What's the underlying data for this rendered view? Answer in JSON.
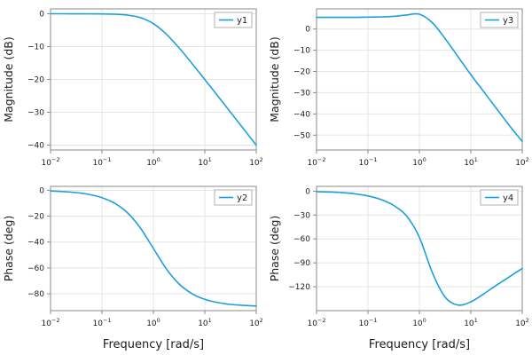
{
  "figure": {
    "background": "#ffffff",
    "line_color": "#1ca0dc",
    "grid_color": "#e5e5e5",
    "frame_color": "#8a8a8a",
    "text_color": "#1c1c1c",
    "legend_border_color": "#b0b0b0"
  },
  "chart_data": [
    {
      "type": "line",
      "position": "top-left",
      "legend": "y1",
      "ylabel": "Magnitude (dB)",
      "xlabel": "",
      "x_scale": "log10",
      "xlim": [
        -2,
        2
      ],
      "ylim": [
        -41.5,
        1.5
      ],
      "xtick_exponents": [
        -2,
        -1,
        0,
        1,
        2
      ],
      "yticks": [
        0,
        -10,
        -20,
        -30,
        -40
      ],
      "grid": true,
      "legend_position": "top-right",
      "points": [
        [
          -2,
          0
        ],
        [
          -1.75,
          0
        ],
        [
          -1.5,
          -0.005
        ],
        [
          -1.25,
          -0.014
        ],
        [
          -1,
          -0.043
        ],
        [
          -0.75,
          -0.135
        ],
        [
          -0.5,
          -0.414
        ],
        [
          -0.25,
          -1.19
        ],
        [
          0,
          -3.01
        ],
        [
          0.25,
          -6.19
        ],
        [
          0.5,
          -10.41
        ],
        [
          0.75,
          -15.13
        ],
        [
          1,
          -20.04
        ],
        [
          1.25,
          -25.01
        ],
        [
          1.5,
          -30.0
        ],
        [
          1.75,
          -35.0
        ],
        [
          2,
          -40.0
        ]
      ]
    },
    {
      "type": "line",
      "position": "top-right",
      "legend": "y3",
      "ylabel": "Magnitude (dB)",
      "xlabel": "",
      "x_scale": "log10",
      "xlim": [
        -2,
        2
      ],
      "ylim": [
        -57,
        9.5
      ],
      "xtick_exponents": [
        -2,
        -1,
        0,
        1,
        2
      ],
      "yticks": [
        0,
        -10,
        -20,
        -30,
        -40,
        -50
      ],
      "grid": true,
      "legend_position": "top-right",
      "points": [
        [
          -2,
          5.5
        ],
        [
          -1.75,
          5.5
        ],
        [
          -1.5,
          5.5
        ],
        [
          -1.25,
          5.5
        ],
        [
          -1,
          5.6
        ],
        [
          -0.75,
          5.7
        ],
        [
          -0.5,
          6.0
        ],
        [
          -0.25,
          6.6
        ],
        [
          0,
          7.0
        ],
        [
          0.25,
          3.0
        ],
        [
          0.5,
          -4.5
        ],
        [
          0.75,
          -13
        ],
        [
          1,
          -21.5
        ],
        [
          1.25,
          -29.5
        ],
        [
          1.5,
          -37.5
        ],
        [
          1.75,
          -45.5
        ],
        [
          2,
          -53
        ]
      ]
    },
    {
      "type": "line",
      "position": "bottom-left",
      "legend": "y2",
      "ylabel": "Phase (deg)",
      "xlabel": "Frequency [rad/s]",
      "x_scale": "log10",
      "xlim": [
        -2,
        2
      ],
      "ylim": [
        -93,
        3
      ],
      "xtick_exponents": [
        -2,
        -1,
        0,
        1,
        2
      ],
      "yticks": [
        0,
        -20,
        -40,
        -60,
        -80
      ],
      "grid": true,
      "legend_position": "top-right",
      "points": [
        [
          -2,
          -0.57
        ],
        [
          -1.75,
          -1.02
        ],
        [
          -1.5,
          -1.81
        ],
        [
          -1.25,
          -3.22
        ],
        [
          -1,
          -5.71
        ],
        [
          -0.75,
          -10.08
        ],
        [
          -0.5,
          -17.55
        ],
        [
          -0.25,
          -29.33
        ],
        [
          0,
          -45
        ],
        [
          0.25,
          -60.65
        ],
        [
          0.5,
          -72.45
        ],
        [
          0.75,
          -79.92
        ],
        [
          1,
          -84.29
        ],
        [
          1.25,
          -86.78
        ],
        [
          1.5,
          -88.19
        ],
        [
          1.75,
          -88.98
        ],
        [
          2,
          -89.43
        ]
      ]
    },
    {
      "type": "line",
      "position": "bottom-right",
      "legend": "y4",
      "ylabel": "Phase (deg)",
      "xlabel": "Frequency [rad/s]",
      "x_scale": "log10",
      "xlim": [
        -2,
        2
      ],
      "ylim": [
        -150,
        6
      ],
      "xtick_exponents": [
        -2,
        -1,
        0,
        1,
        2
      ],
      "yticks": [
        0,
        -30,
        -60,
        -90,
        -120
      ],
      "grid": true,
      "legend_position": "top-right",
      "points": [
        [
          -2,
          -0.6
        ],
        [
          -1.75,
          -1.0
        ],
        [
          -1.5,
          -1.9
        ],
        [
          -1.25,
          -3.4
        ],
        [
          -1,
          -6
        ],
        [
          -0.75,
          -10.5
        ],
        [
          -0.5,
          -18
        ],
        [
          -0.25,
          -31
        ],
        [
          0,
          -58
        ],
        [
          0.25,
          -102
        ],
        [
          0.5,
          -133
        ],
        [
          0.75,
          -143
        ],
        [
          1,
          -139
        ],
        [
          1.25,
          -129
        ],
        [
          1.5,
          -118
        ],
        [
          1.75,
          -107.5
        ],
        [
          2,
          -97
        ]
      ]
    }
  ]
}
